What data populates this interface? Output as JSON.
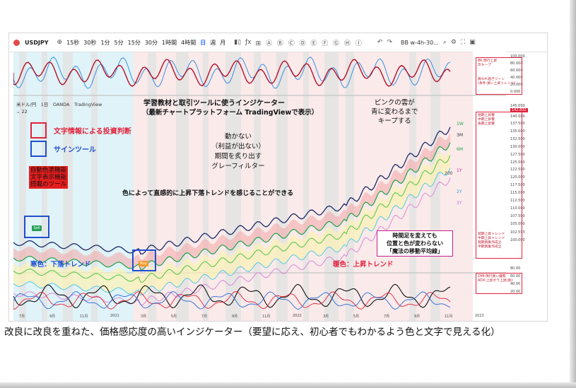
{
  "toolbar": {
    "symbol": "USDJPY",
    "intervals": [
      "15秒",
      "30秒",
      "1分",
      "5分",
      "15分",
      "30分",
      "1時間",
      "4時間",
      "日",
      "週",
      "月"
    ],
    "active_interval": "日",
    "indicator_label": "BB w-4h-30...",
    "icons": [
      "plus-icon",
      "candle-icon",
      "bar-indicator-icon",
      "undo-icon",
      "redo-icon",
      "search-icon",
      "settings-icon",
      "fullscreen-icon",
      "camera-icon"
    ]
  },
  "legend": {
    "pair": "米ドル/円",
    "timeframe": "1日",
    "source": "OANDA",
    "platform": "TradingView",
    "sub": "22"
  },
  "annotations": {
    "heading1": "学習教材と取引ツールに使うインジケーター",
    "heading2": "（最新チャートプラットフォーム TradingViewで表示）",
    "legend_red": "文字情報による投資判断",
    "legend_blue": "サインツール",
    "feature_box": [
      "自動色塗機能",
      "文字表示機能",
      "搭載のツール"
    ],
    "gray_filter": [
      "動かない",
      "（利益が出ない）",
      "期間を炙り出す",
      "グレーフィルター"
    ],
    "color_trend": "色によって直感的に上昇下落トレンドを感じることができる",
    "pink_cloud": [
      "ピンクの雲が",
      "青に変わるまで",
      "キープする"
    ],
    "ma_note": [
      "時間足を変えても",
      "位置と色が変わらない",
      "「魔法の移動平均線」"
    ],
    "cold": "寒色：下落トレンド",
    "warm": "暖色：上昇トレンド",
    "sell": "Sell",
    "buy": "Buy"
  },
  "panel_text": {
    "top1": "BK:現行上昇",
    "top2": "Ｂキープ",
    "top3": "買われ過ぎゾーン",
    "top4": "(条件:買い上昇トレンド)",
    "mid": [
      "短期上昇警",
      "中期上昇警",
      "長期上昇警"
    ],
    "low": [
      "短期上昇トレンド",
      "中期上昇トレンド",
      "短期買集作成立",
      "中期買集作成立"
    ],
    "bottom1": "DMI:現行買い優勢",
    "bottom2": "ADX:上昇ボラ上昇(買)",
    "ma_labels": [
      "1W",
      "3M",
      "6M",
      "1Y",
      "2Y",
      "3Y"
    ],
    "ma_label_200": "200"
  },
  "price_axis": [
    "100.000",
    "80.000",
    "60.000",
    "40.000",
    "20.000",
    "0.000",
    "145.000",
    "142.832",
    "140.000",
    "137.500",
    "135.000",
    "132.500",
    "130.000",
    "127.500",
    "125.000",
    "122.500",
    "120.000",
    "117.500",
    "115.000",
    "112.500",
    "110.000",
    "107.500",
    "105.000",
    "102.593",
    "100.000",
    "80.00",
    "60.00",
    "40.00",
    "20.00"
  ],
  "time_axis": [
    "7月",
    "9月",
    "11月",
    "2021",
    "3月",
    "5月",
    "7月",
    "9月",
    "11月",
    "2022",
    "3月",
    "5月",
    "7月",
    "9月",
    "11月",
    "2023"
  ],
  "caption": "改良に改良を重ねた、価格感応度の高いインジケーター（要望に応え、初心者でもわかるよう色と文字で見える化）",
  "colors": {
    "accent_red": "#e0233d",
    "accent_blue": "#1f4fd1",
    "cold_zone": "#c6eaf2",
    "warm_zone": "#f6d6d6",
    "gray_zone": "#e3e3e3"
  }
}
